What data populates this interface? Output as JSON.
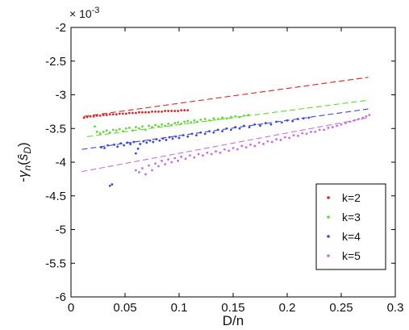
{
  "chart_data": {
    "type": "scatter",
    "title": "",
    "xlabel": "D/n",
    "ylabel": "-γ_n(ŝ_D)",
    "ylabel_parts": {
      "prefix": "-",
      "gamma": "γ",
      "sub_n": "n",
      "open": "(",
      "s": "ŝ",
      "sub_D": "D",
      "close": ")"
    },
    "y_multiplier": "× 10",
    "y_multiplier_exp": "-3",
    "xlim": [
      0,
      0.3
    ],
    "ylim": [
      -6,
      -2
    ],
    "xticks": [
      "0",
      "0.05",
      "0.1",
      "0.15",
      "0.2",
      "0.25",
      "0.3"
    ],
    "yticks": [
      "-2",
      "-2.5",
      "-3",
      "-3.5",
      "-4",
      "-4.5",
      "-5",
      "-5.5",
      "-6"
    ],
    "xtick_values": [
      0,
      0.05,
      0.1,
      0.15,
      0.2,
      0.25,
      0.3
    ],
    "ytick_values": [
      -2,
      -2.5,
      -3,
      -3.5,
      -4,
      -4.5,
      -5,
      -5.5,
      -6
    ],
    "grid": false,
    "legend_position": "bottom-right",
    "series": [
      {
        "name": "k=2",
        "color": "#e8201e",
        "points": [
          [
            0.012,
            -3.34
          ],
          [
            0.015,
            -3.33
          ],
          [
            0.018,
            -3.32
          ],
          [
            0.021,
            -3.32
          ],
          [
            0.024,
            -3.31
          ],
          [
            0.027,
            -3.31
          ],
          [
            0.03,
            -3.3
          ],
          [
            0.033,
            -3.3
          ],
          [
            0.036,
            -3.29
          ],
          [
            0.039,
            -3.29
          ],
          [
            0.042,
            -3.29
          ],
          [
            0.045,
            -3.28
          ],
          [
            0.048,
            -3.28
          ],
          [
            0.051,
            -3.28
          ],
          [
            0.054,
            -3.27
          ],
          [
            0.057,
            -3.27
          ],
          [
            0.06,
            -3.27
          ],
          [
            0.063,
            -3.26
          ],
          [
            0.066,
            -3.26
          ],
          [
            0.069,
            -3.26
          ],
          [
            0.072,
            -3.26
          ],
          [
            0.075,
            -3.25
          ],
          [
            0.078,
            -3.25
          ],
          [
            0.081,
            -3.25
          ],
          [
            0.084,
            -3.25
          ],
          [
            0.087,
            -3.24
          ],
          [
            0.09,
            -3.24
          ],
          [
            0.093,
            -3.24
          ],
          [
            0.096,
            -3.24
          ],
          [
            0.099,
            -3.24
          ],
          [
            0.102,
            -3.23
          ],
          [
            0.105,
            -3.23
          ],
          [
            0.108,
            -3.23
          ]
        ],
        "fit": [
          [
            0.012,
            -3.32
          ],
          [
            0.275,
            -2.74
          ]
        ]
      },
      {
        "name": "k=3",
        "color": "#5ddc2a",
        "points": [
          [
            0.022,
            -3.47
          ],
          [
            0.024,
            -3.55
          ],
          [
            0.027,
            -3.57
          ],
          [
            0.03,
            -3.55
          ],
          [
            0.033,
            -3.53
          ],
          [
            0.036,
            -3.56
          ],
          [
            0.039,
            -3.52
          ],
          [
            0.042,
            -3.53
          ],
          [
            0.045,
            -3.51
          ],
          [
            0.048,
            -3.54
          ],
          [
            0.051,
            -3.5
          ],
          [
            0.054,
            -3.49
          ],
          [
            0.057,
            -3.53
          ],
          [
            0.06,
            -3.48
          ],
          [
            0.063,
            -3.5
          ],
          [
            0.066,
            -3.47
          ],
          [
            0.069,
            -3.52
          ],
          [
            0.072,
            -3.46
          ],
          [
            0.075,
            -3.48
          ],
          [
            0.078,
            -3.45
          ],
          [
            0.081,
            -3.47
          ],
          [
            0.084,
            -3.44
          ],
          [
            0.087,
            -3.46
          ],
          [
            0.09,
            -3.43
          ],
          [
            0.093,
            -3.45
          ],
          [
            0.096,
            -3.42
          ],
          [
            0.099,
            -3.41
          ],
          [
            0.102,
            -3.43
          ],
          [
            0.105,
            -3.4
          ],
          [
            0.108,
            -3.39
          ],
          [
            0.111,
            -3.41
          ],
          [
            0.114,
            -3.38
          ],
          [
            0.117,
            -3.4
          ],
          [
            0.12,
            -3.37
          ],
          [
            0.124,
            -3.36
          ],
          [
            0.128,
            -3.38
          ],
          [
            0.132,
            -3.35
          ],
          [
            0.136,
            -3.36
          ],
          [
            0.14,
            -3.34
          ],
          [
            0.144,
            -3.35
          ],
          [
            0.148,
            -3.33
          ],
          [
            0.152,
            -3.32
          ],
          [
            0.156,
            -3.33
          ],
          [
            0.16,
            -3.31
          ],
          [
            0.164,
            -3.3
          ]
        ],
        "fit": [
          [
            0.015,
            -3.62
          ],
          [
            0.275,
            -3.08
          ]
        ]
      },
      {
        "name": "k=4",
        "color": "#3a48e0",
        "points": [
          [
            0.028,
            -3.78
          ],
          [
            0.031,
            -3.79
          ],
          [
            0.034,
            -3.75
          ],
          [
            0.036,
            -4.35
          ],
          [
            0.038,
            -4.33
          ],
          [
            0.04,
            -3.74
          ],
          [
            0.043,
            -3.77
          ],
          [
            0.046,
            -3.72
          ],
          [
            0.049,
            -3.75
          ],
          [
            0.052,
            -3.71
          ],
          [
            0.055,
            -3.73
          ],
          [
            0.058,
            -3.7
          ],
          [
            0.06,
            -3.87
          ],
          [
            0.062,
            -3.8
          ],
          [
            0.064,
            -3.73
          ],
          [
            0.067,
            -3.69
          ],
          [
            0.07,
            -3.71
          ],
          [
            0.073,
            -3.68
          ],
          [
            0.076,
            -3.7
          ],
          [
            0.079,
            -3.66
          ],
          [
            0.082,
            -3.68
          ],
          [
            0.085,
            -3.65
          ],
          [
            0.088,
            -3.67
          ],
          [
            0.091,
            -3.63
          ],
          [
            0.094,
            -3.65
          ],
          [
            0.097,
            -3.62
          ],
          [
            0.1,
            -3.64
          ],
          [
            0.104,
            -3.6
          ],
          [
            0.108,
            -3.62
          ],
          [
            0.112,
            -3.58
          ],
          [
            0.116,
            -3.6
          ],
          [
            0.12,
            -3.56
          ],
          [
            0.124,
            -3.58
          ],
          [
            0.128,
            -3.54
          ],
          [
            0.132,
            -3.56
          ],
          [
            0.136,
            -3.52
          ],
          [
            0.14,
            -3.54
          ],
          [
            0.144,
            -3.5
          ],
          [
            0.148,
            -3.52
          ],
          [
            0.152,
            -3.48
          ],
          [
            0.156,
            -3.5
          ],
          [
            0.16,
            -3.46
          ],
          [
            0.165,
            -3.48
          ],
          [
            0.17,
            -3.44
          ],
          [
            0.175,
            -3.46
          ],
          [
            0.18,
            -3.42
          ],
          [
            0.185,
            -3.44
          ],
          [
            0.19,
            -3.4
          ],
          [
            0.195,
            -3.41
          ],
          [
            0.2,
            -3.38
          ],
          [
            0.205,
            -3.39
          ],
          [
            0.21,
            -3.36
          ],
          [
            0.215,
            -3.35
          ],
          [
            0.22,
            -3.34
          ]
        ],
        "fit": [
          [
            0.01,
            -3.81
          ],
          [
            0.275,
            -3.21
          ]
        ]
      },
      {
        "name": "k=5",
        "color": "#c86ee6",
        "points": [
          [
            0.06,
            -4.12
          ],
          [
            0.063,
            -4.15
          ],
          [
            0.066,
            -4.09
          ],
          [
            0.069,
            -4.18
          ],
          [
            0.072,
            -4.05
          ],
          [
            0.075,
            -4.12
          ],
          [
            0.078,
            -4.02
          ],
          [
            0.081,
            -4.06
          ],
          [
            0.084,
            -3.98
          ],
          [
            0.087,
            -4.03
          ],
          [
            0.09,
            -3.96
          ],
          [
            0.093,
            -4.0
          ],
          [
            0.096,
            -3.94
          ],
          [
            0.099,
            -3.98
          ],
          [
            0.102,
            -3.92
          ],
          [
            0.106,
            -3.95
          ],
          [
            0.11,
            -3.9
          ],
          [
            0.114,
            -3.93
          ],
          [
            0.118,
            -3.88
          ],
          [
            0.122,
            -3.9
          ],
          [
            0.126,
            -3.86
          ],
          [
            0.13,
            -3.88
          ],
          [
            0.134,
            -3.84
          ],
          [
            0.138,
            -3.86
          ],
          [
            0.142,
            -3.81
          ],
          [
            0.146,
            -3.83
          ],
          [
            0.15,
            -3.79
          ],
          [
            0.154,
            -3.81
          ],
          [
            0.158,
            -3.76
          ],
          [
            0.162,
            -3.78
          ],
          [
            0.166,
            -3.74
          ],
          [
            0.17,
            -3.76
          ],
          [
            0.174,
            -3.71
          ],
          [
            0.178,
            -3.73
          ],
          [
            0.182,
            -3.69
          ],
          [
            0.186,
            -3.7
          ],
          [
            0.19,
            -3.66
          ],
          [
            0.194,
            -3.67
          ],
          [
            0.198,
            -3.63
          ],
          [
            0.202,
            -3.64
          ],
          [
            0.206,
            -3.6
          ],
          [
            0.21,
            -3.61
          ],
          [
            0.214,
            -3.57
          ],
          [
            0.218,
            -3.58
          ],
          [
            0.222,
            -3.55
          ],
          [
            0.226,
            -3.55
          ],
          [
            0.23,
            -3.52
          ],
          [
            0.234,
            -3.52
          ],
          [
            0.238,
            -3.49
          ],
          [
            0.242,
            -3.48
          ],
          [
            0.246,
            -3.46
          ],
          [
            0.25,
            -3.44
          ],
          [
            0.254,
            -3.42
          ],
          [
            0.258,
            -3.4
          ],
          [
            0.262,
            -3.38
          ],
          [
            0.266,
            -3.36
          ],
          [
            0.27,
            -3.34
          ],
          [
            0.273,
            -3.32
          ],
          [
            0.276,
            -3.3
          ]
        ],
        "fit": [
          [
            0.01,
            -4.14
          ],
          [
            0.275,
            -3.34
          ]
        ]
      }
    ]
  }
}
